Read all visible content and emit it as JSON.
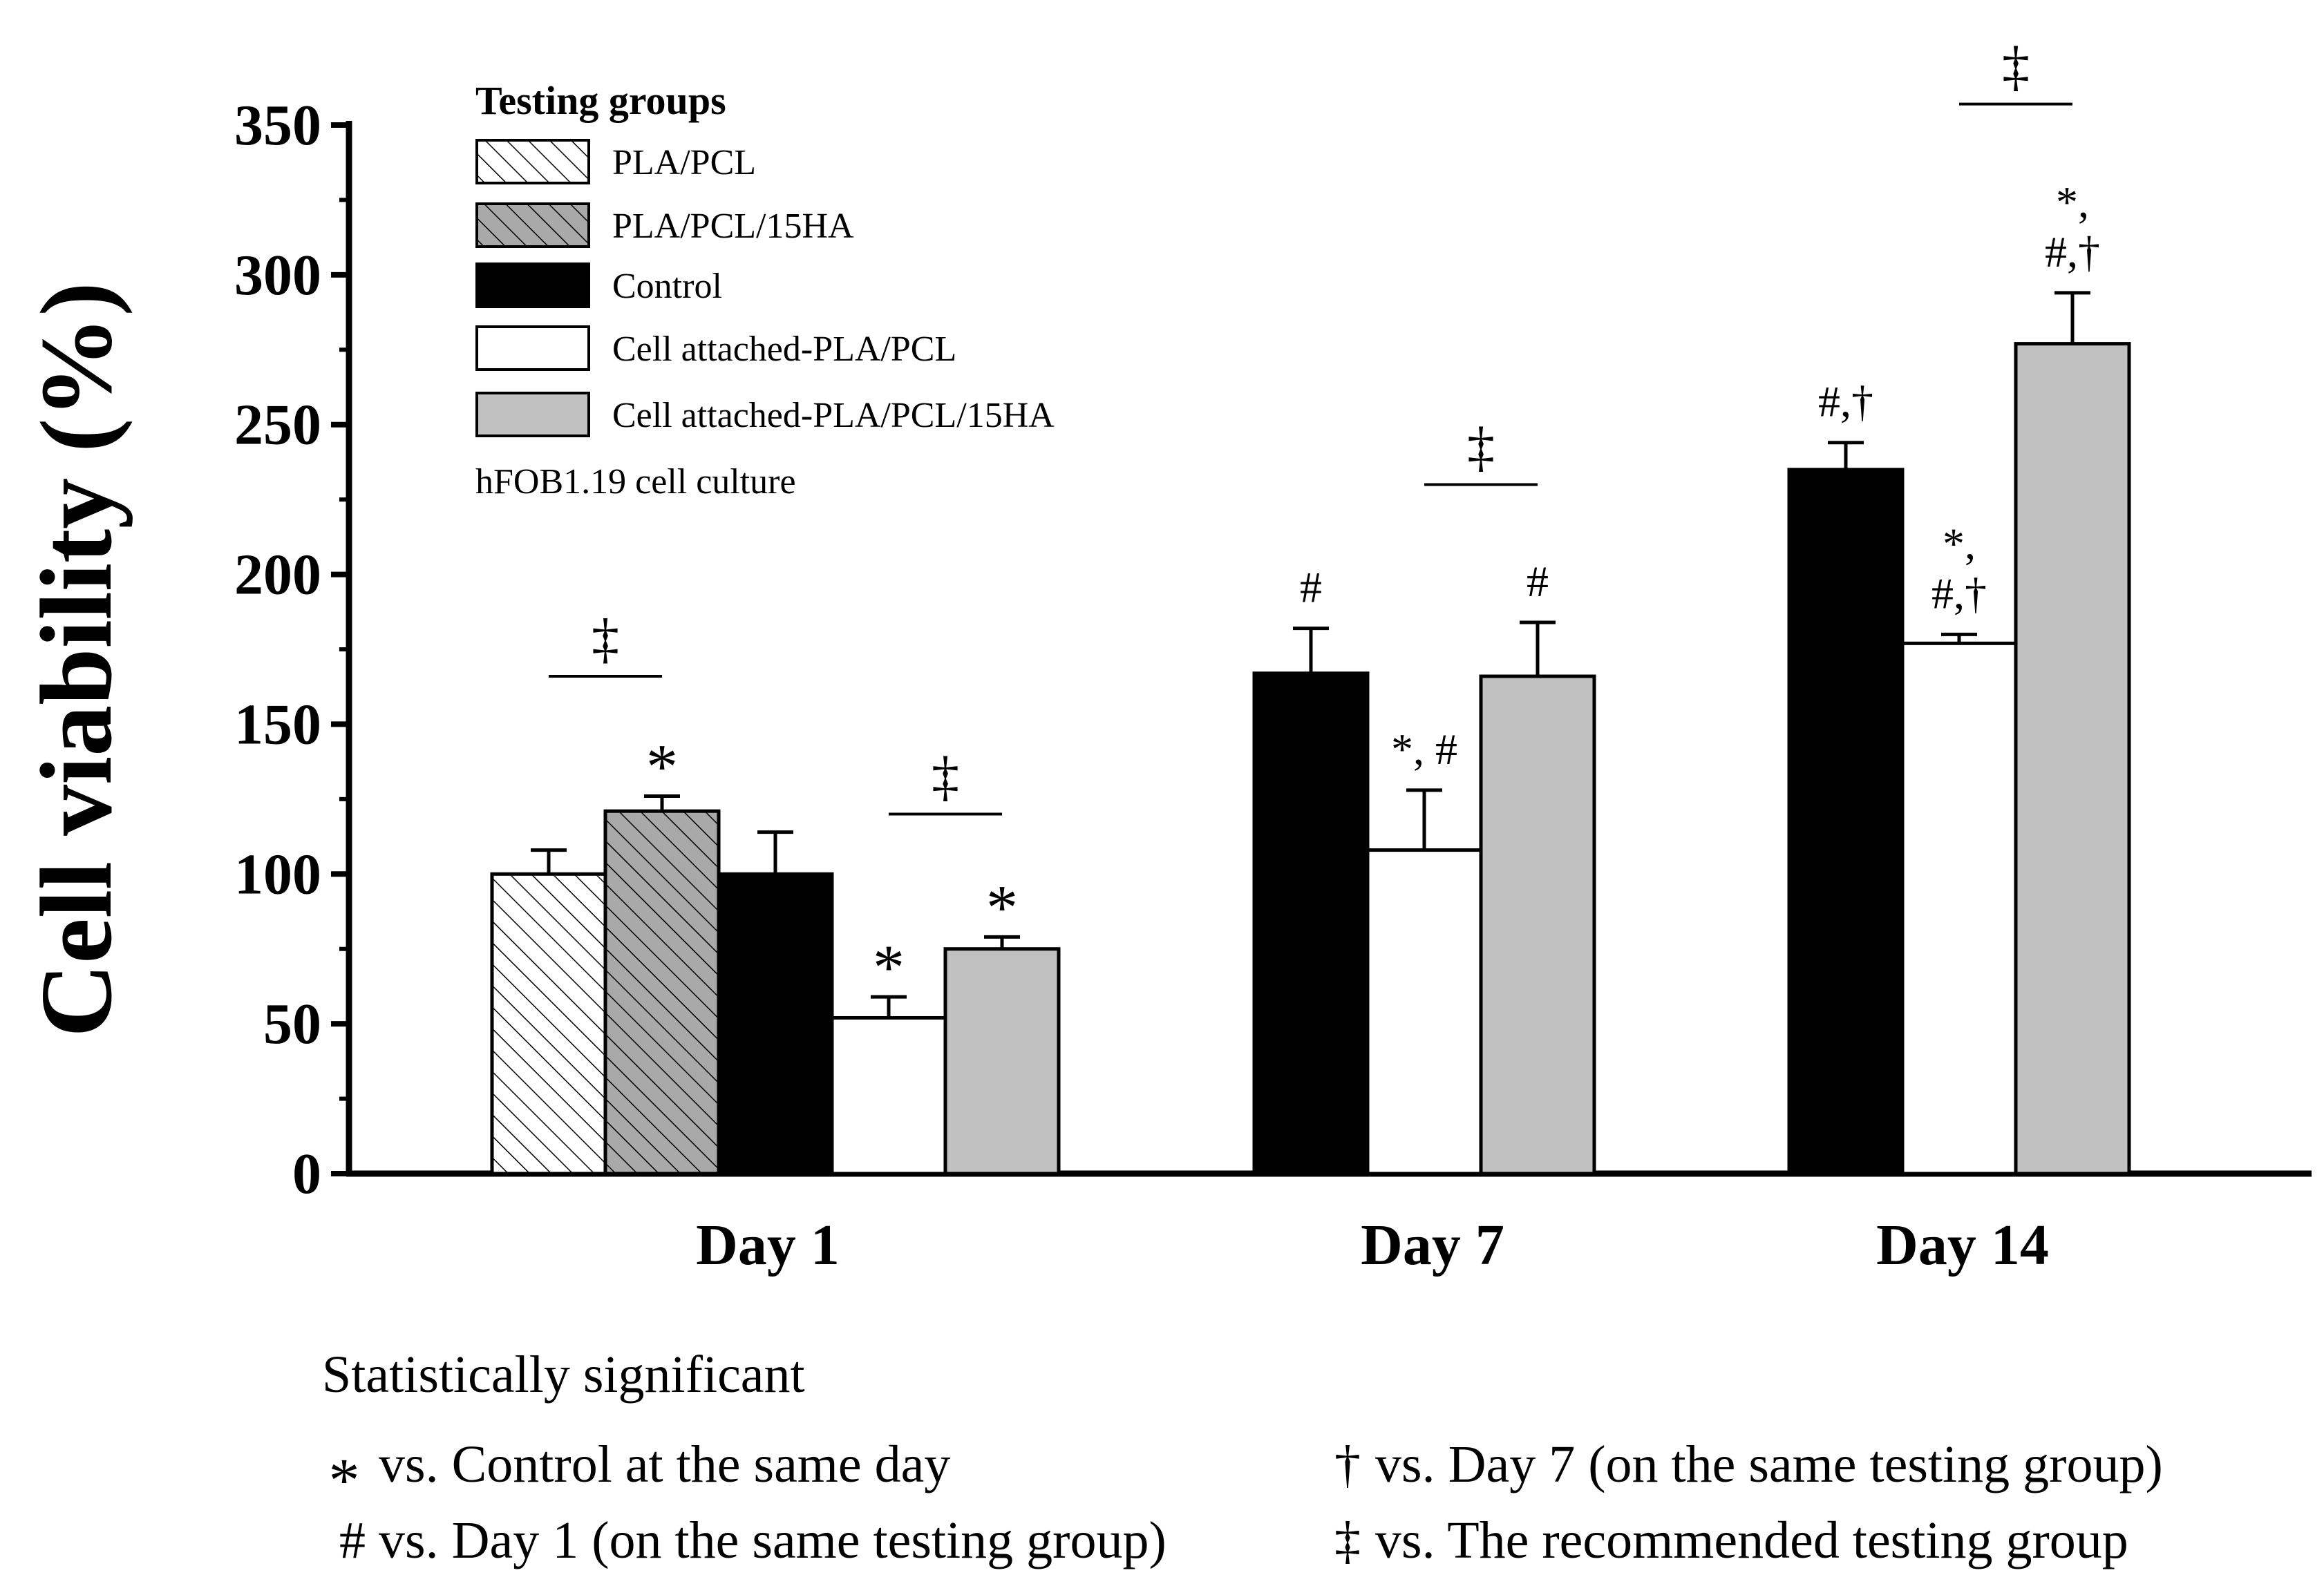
{
  "chart_data": {
    "type": "bar",
    "ylabel": "Cell viability (%)",
    "ylim": [
      0,
      350
    ],
    "yticks": [
      0,
      50,
      100,
      150,
      200,
      250,
      300,
      350
    ],
    "legend_title": "Testing groups",
    "legend_note": "hFOB1.19 cell culture",
    "legend_placement": "top-left",
    "categories": [
      "Day 1",
      "Day 7",
      "Day 14"
    ],
    "series": [
      {
        "name": "PLA/PCL",
        "fill": "hatch-white",
        "values": [
          100,
          null,
          null
        ],
        "errors": [
          8,
          null,
          null
        ]
      },
      {
        "name": "PLA/PCL/15HA",
        "fill": "hatch-gray",
        "values": [
          121,
          null,
          null
        ],
        "errors": [
          5,
          null,
          null
        ]
      },
      {
        "name": "Control",
        "fill": "#000000",
        "values": [
          100,
          167,
          235
        ],
        "errors": [
          14,
          15,
          9
        ]
      },
      {
        "name": "Cell attached-PLA/PCL",
        "fill": "#ffffff",
        "values": [
          52,
          108,
          177
        ],
        "errors": [
          7,
          20,
          3
        ]
      },
      {
        "name": "Cell attached-PLA/PCL/15HA",
        "fill": "#c0c0c0",
        "values": [
          75,
          166,
          277
        ],
        "errors": [
          4,
          18,
          17
        ]
      }
    ],
    "bar_annotations": [
      {
        "category": 0,
        "series": 1,
        "lines": [
          "*"
        ]
      },
      {
        "category": 0,
        "series": 3,
        "lines": [
          "*"
        ]
      },
      {
        "category": 0,
        "series": 4,
        "lines": [
          "*"
        ]
      },
      {
        "category": 1,
        "series": 2,
        "lines": [
          "#"
        ]
      },
      {
        "category": 1,
        "series": 3,
        "lines": [
          "*, #"
        ]
      },
      {
        "category": 1,
        "series": 4,
        "lines": [
          "#"
        ]
      },
      {
        "category": 2,
        "series": 2,
        "lines": [
          "#,†"
        ]
      },
      {
        "category": 2,
        "series": 3,
        "lines": [
          "*,",
          "#,†"
        ]
      },
      {
        "category": 2,
        "series": 4,
        "lines": [
          "*,",
          "#,†"
        ]
      }
    ],
    "comparison_brackets": [
      {
        "category": 0,
        "from_series": 0,
        "to_series": 1,
        "y": 166,
        "symbol": "‡"
      },
      {
        "category": 0,
        "from_series": 3,
        "to_series": 4,
        "y": 120,
        "symbol": "‡"
      },
      {
        "category": 1,
        "from_series": 3,
        "to_series": 4,
        "y": 230,
        "symbol": "‡"
      },
      {
        "category": 2,
        "from_series": 3,
        "to_series": 4,
        "y": 357,
        "symbol": "‡"
      }
    ],
    "footnotes": {
      "title": "Statistically significant",
      "items": [
        {
          "symbol": "*",
          "text": "vs. Control at the same day"
        },
        {
          "symbol": "†",
          "text": "vs. Day 7 (on the same testing group)"
        },
        {
          "symbol": "#",
          "text": "vs. Day 1 (on the same testing group)"
        },
        {
          "symbol": "‡",
          "text": "vs. The recommended testing group"
        }
      ]
    }
  }
}
